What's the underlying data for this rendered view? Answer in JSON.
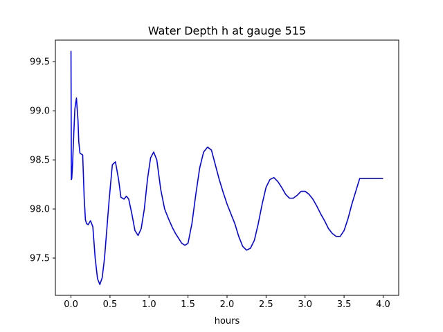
{
  "chart_data": {
    "type": "line",
    "title": "Water Depth h at gauge 515",
    "xlabel": "hours",
    "ylabel": "",
    "xlim": [
      -0.2,
      4.2
    ],
    "ylim": [
      97.12,
      99.72
    ],
    "grid": false,
    "xticks": [
      0.0,
      0.5,
      1.0,
      1.5,
      2.0,
      2.5,
      3.0,
      3.5,
      4.0
    ],
    "xtick_labels": [
      "0.0",
      "0.5",
      "1.0",
      "1.5",
      "2.0",
      "2.5",
      "3.0",
      "3.5",
      "4.0"
    ],
    "yticks": [
      97.5,
      98.0,
      98.5,
      99.0,
      99.5
    ],
    "ytick_labels": [
      "97.5",
      "98.0",
      "98.5",
      "99.0",
      "99.5"
    ],
    "colors": {
      "line": "#0000ff",
      "axes": "#000000",
      "background": "#ffffff"
    },
    "series": [
      {
        "x": [
          0.0,
          0.005,
          0.01,
          0.02,
          0.035,
          0.05,
          0.07,
          0.09,
          0.1,
          0.115,
          0.13,
          0.15,
          0.17,
          0.185,
          0.2,
          0.22,
          0.25,
          0.28,
          0.31,
          0.34,
          0.37,
          0.4,
          0.43,
          0.46,
          0.49,
          0.53,
          0.57,
          0.61,
          0.64,
          0.68,
          0.71,
          0.74,
          0.78,
          0.82,
          0.86,
          0.9,
          0.94,
          0.98,
          1.02,
          1.06,
          1.1,
          1.15,
          1.2,
          1.25,
          1.3,
          1.34,
          1.38,
          1.42,
          1.46,
          1.5,
          1.55,
          1.6,
          1.65,
          1.7,
          1.75,
          1.8,
          1.85,
          1.9,
          1.95,
          2.0,
          2.05,
          2.1,
          2.15,
          2.2,
          2.25,
          2.3,
          2.35,
          2.4,
          2.45,
          2.5,
          2.55,
          2.6,
          2.65,
          2.7,
          2.75,
          2.8,
          2.85,
          2.9,
          2.95,
          3.0,
          3.05,
          3.1,
          3.15,
          3.2,
          3.25,
          3.3,
          3.35,
          3.4,
          3.45,
          3.5,
          3.55,
          3.6,
          3.65,
          3.7,
          3.75,
          3.8,
          3.85,
          3.9,
          3.95,
          4.0
        ],
        "y": [
          99.61,
          98.3,
          98.31,
          98.45,
          98.75,
          99.02,
          99.13,
          98.9,
          98.68,
          98.57,
          98.56,
          98.55,
          98.1,
          97.89,
          97.85,
          97.84,
          97.88,
          97.82,
          97.5,
          97.29,
          97.23,
          97.3,
          97.5,
          97.8,
          98.1,
          98.45,
          98.48,
          98.3,
          98.12,
          98.1,
          98.13,
          98.1,
          97.95,
          97.78,
          97.73,
          97.8,
          98.0,
          98.3,
          98.52,
          98.58,
          98.5,
          98.2,
          98.0,
          97.9,
          97.81,
          97.75,
          97.7,
          97.65,
          97.63,
          97.65,
          97.85,
          98.15,
          98.42,
          98.58,
          98.63,
          98.6,
          98.45,
          98.3,
          98.17,
          98.05,
          97.95,
          97.85,
          97.72,
          97.62,
          97.58,
          97.6,
          97.68,
          97.85,
          98.05,
          98.22,
          98.3,
          98.32,
          98.28,
          98.22,
          98.15,
          98.11,
          98.11,
          98.14,
          98.18,
          98.18,
          98.15,
          98.1,
          98.03,
          97.95,
          97.88,
          97.8,
          97.75,
          97.72,
          97.72,
          97.78,
          97.9,
          98.05,
          98.18,
          98.31,
          98.31,
          98.31,
          98.31,
          98.31,
          98.31,
          98.31
        ]
      }
    ]
  }
}
